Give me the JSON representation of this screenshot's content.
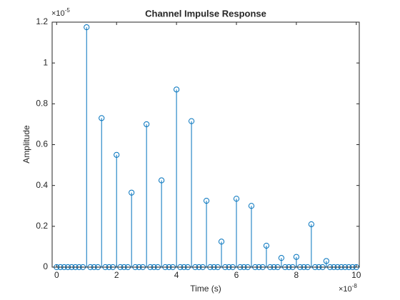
{
  "chart_data": {
    "type": "stem",
    "title": "Channel Impulse Response",
    "x_label": "Time (s)",
    "y_label": "Amplitude",
    "x_exponent": {
      "base": "×10",
      "power": "-8"
    },
    "y_exponent": {
      "base": "×10",
      "power": "-5"
    },
    "color": "#0072bd",
    "grid": false,
    "xlim": [
      -0.15,
      10.1
    ],
    "xticks": [
      0,
      2,
      4,
      6,
      8,
      10
    ],
    "ylim": [
      0,
      1.2
    ],
    "yticks": [
      0,
      0.2,
      0.4,
      0.6,
      0.8,
      1,
      1.2
    ],
    "x": [
      0,
      0.125,
      0.25,
      0.375,
      0.5,
      0.625,
      0.75,
      0.875,
      1,
      1.125,
      1.25,
      1.375,
      1.5,
      1.625,
      1.75,
      1.875,
      2,
      2.125,
      2.25,
      2.375,
      2.5,
      2.625,
      2.75,
      2.875,
      3,
      3.125,
      3.25,
      3.375,
      3.5,
      3.625,
      3.75,
      3.875,
      4,
      4.125,
      4.25,
      4.375,
      4.5,
      4.625,
      4.75,
      4.875,
      5,
      5.125,
      5.25,
      5.375,
      5.5,
      5.625,
      5.75,
      5.875,
      6,
      6.125,
      6.25,
      6.375,
      6.5,
      6.625,
      6.75,
      6.875,
      7,
      7.125,
      7.25,
      7.375,
      7.5,
      7.625,
      7.75,
      7.875,
      8,
      8.125,
      8.25,
      8.375,
      8.5,
      8.625,
      8.75,
      8.875,
      9,
      9.125,
      9.25,
      9.375,
      9.5,
      9.625,
      9.75,
      9.875,
      10
    ],
    "values": [
      0,
      0,
      0,
      0,
      0,
      0,
      0,
      0,
      1.175,
      0,
      0,
      0,
      0.73,
      0,
      0,
      0,
      0.55,
      0,
      0,
      0,
      0.365,
      0,
      0,
      0,
      0.7,
      0,
      0,
      0,
      0.425,
      0,
      0,
      0,
      0.87,
      0,
      0,
      0,
      0.715,
      0,
      0,
      0,
      0.325,
      0,
      0,
      0,
      0.125,
      0,
      0,
      0,
      0.335,
      0,
      0,
      0,
      0.3,
      0,
      0,
      0,
      0.105,
      0,
      0,
      0,
      0.045,
      0,
      0,
      0,
      0.05,
      0,
      0,
      0,
      0.21,
      0,
      0,
      0,
      0.03,
      0,
      0,
      0,
      0,
      0,
      0,
      0,
      0
    ]
  }
}
